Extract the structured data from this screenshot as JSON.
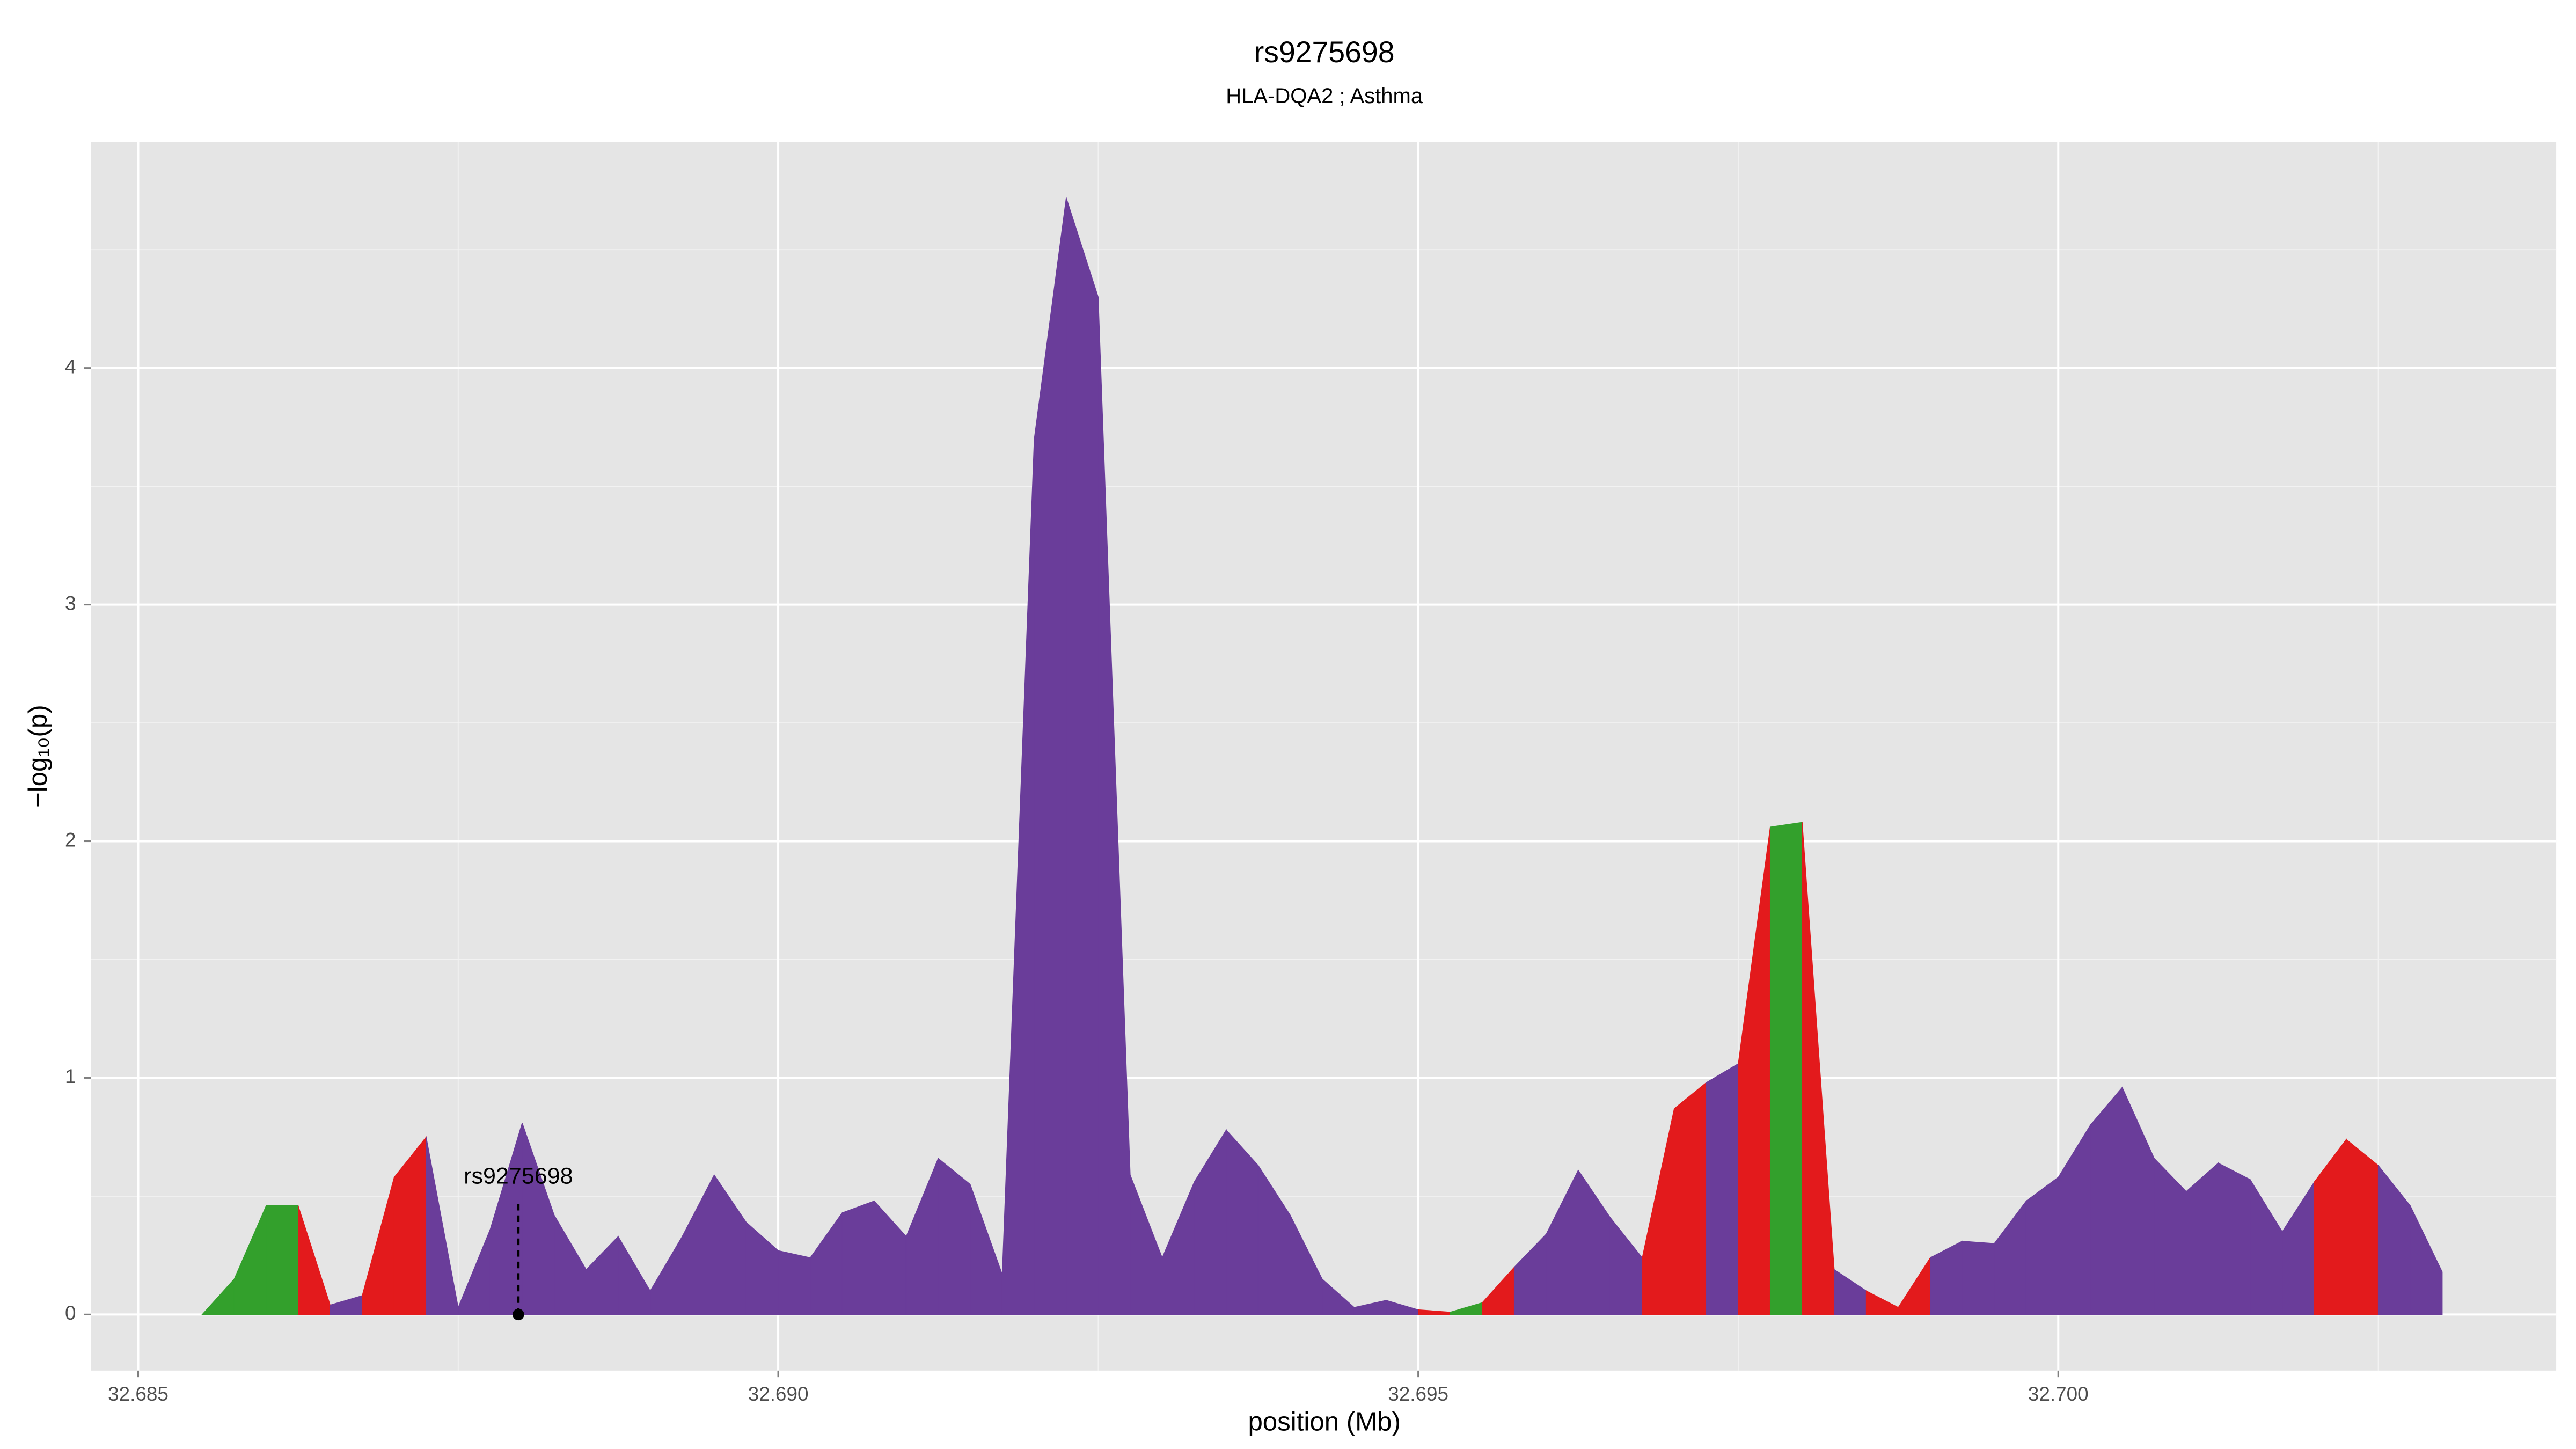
{
  "chart_data": {
    "type": "area",
    "title": "rs9275698",
    "subtitle": "HLA-DQA2 ; Asthma",
    "xlabel": "position (Mb)",
    "ylabel": "−log₁₀(p)",
    "x": [
      32.6855,
      32.68575,
      32.686,
      32.68625,
      32.6865,
      32.68675,
      32.687,
      32.68725,
      32.6875,
      32.68775,
      32.688,
      32.68825,
      32.6885,
      32.68875,
      32.689,
      32.68925,
      32.6895,
      32.68975,
      32.69,
      32.69025,
      32.6905,
      32.69075,
      32.691,
      32.69125,
      32.6915,
      32.69175,
      32.692,
      32.69225,
      32.6925,
      32.69275,
      32.693,
      32.69325,
      32.6935,
      32.69375,
      32.694,
      32.69425,
      32.6945,
      32.69475,
      32.695,
      32.69525,
      32.6955,
      32.69575,
      32.696,
      32.69625,
      32.6965,
      32.69675,
      32.697,
      32.69725,
      32.6975,
      32.69775,
      32.698,
      32.69825,
      32.6985,
      32.69875,
      32.699,
      32.69925,
      32.6995,
      32.69975,
      32.7,
      32.70025,
      32.7005,
      32.70075,
      32.701,
      32.70125,
      32.7015,
      32.70175,
      32.702,
      32.70225,
      32.7025,
      32.70275,
      32.703
    ],
    "values": [
      0,
      0.15,
      0.46,
      0.46,
      0.04,
      0.08,
      0.58,
      0.75,
      0.03,
      0.36,
      0.81,
      0.42,
      0.19,
      0.33,
      0.1,
      0.33,
      0.59,
      0.39,
      0.27,
      0.24,
      0.43,
      0.48,
      0.33,
      0.66,
      0.55,
      0.17,
      3.7,
      4.72,
      4.3,
      0.59,
      0.24,
      0.56,
      0.78,
      0.63,
      0.42,
      0.15,
      0.03,
      0.06,
      0.02,
      0.01,
      0.05,
      0.2,
      0.34,
      0.61,
      0.41,
      0.24,
      0.87,
      0.98,
      1.06,
      2.06,
      2.08,
      0.19,
      0.1,
      0.03,
      0.24,
      0.31,
      0.3,
      0.48,
      0.58,
      0.8,
      0.96,
      0.66,
      0.52,
      0.64,
      0.57,
      0.35,
      0.56,
      0.74,
      0.63,
      0.46,
      0.18
    ],
    "segment_colors": [
      "#33a02c",
      "#33a02c",
      "#33a02c",
      "#e31a1c",
      "#6a3d9a",
      "#e31a1c",
      "#e31a1c",
      "#6a3d9a",
      "#6a3d9a",
      "#6a3d9a",
      "#6a3d9a",
      "#6a3d9a",
      "#6a3d9a",
      "#6a3d9a",
      "#6a3d9a",
      "#6a3d9a",
      "#6a3d9a",
      "#6a3d9a",
      "#6a3d9a",
      "#6a3d9a",
      "#6a3d9a",
      "#6a3d9a",
      "#6a3d9a",
      "#6a3d9a",
      "#6a3d9a",
      "#6a3d9a",
      "#6a3d9a",
      "#6a3d9a",
      "#6a3d9a",
      "#6a3d9a",
      "#6a3d9a",
      "#6a3d9a",
      "#6a3d9a",
      "#6a3d9a",
      "#6a3d9a",
      "#6a3d9a",
      "#6a3d9a",
      "#6a3d9a",
      "#e31a1c",
      "#33a02c",
      "#e31a1c",
      "#6a3d9a",
      "#6a3d9a",
      "#6a3d9a",
      "#6a3d9a",
      "#e31a1c",
      "#e31a1c",
      "#6a3d9a",
      "#e31a1c",
      "#33a02c",
      "#e31a1c",
      "#6a3d9a",
      "#e31a1c",
      "#e31a1c",
      "#6a3d9a",
      "#6a3d9a",
      "#6a3d9a",
      "#6a3d9a",
      "#6a3d9a",
      "#6a3d9a",
      "#6a3d9a",
      "#6a3d9a",
      "#6a3d9a",
      "#6a3d9a",
      "#6a3d9a",
      "#6a3d9a",
      "#e31a1c",
      "#e31a1c",
      "#6a3d9a",
      "#6a3d9a"
    ],
    "annotation": {
      "label": "rs9275698",
      "x": 32.68797,
      "y": 0
    },
    "xlim": [
      32.68463,
      32.70389
    ],
    "ylim": [
      -0.237,
      4.955
    ],
    "xticks": [
      32.685,
      {
        "value": 32.69,
        "label": "32.690"
      },
      32.695,
      {
        "value": 32.7,
        "label": "32.700"
      }
    ],
    "yticks": [
      0,
      1,
      2,
      3,
      4
    ],
    "grid": true
  }
}
